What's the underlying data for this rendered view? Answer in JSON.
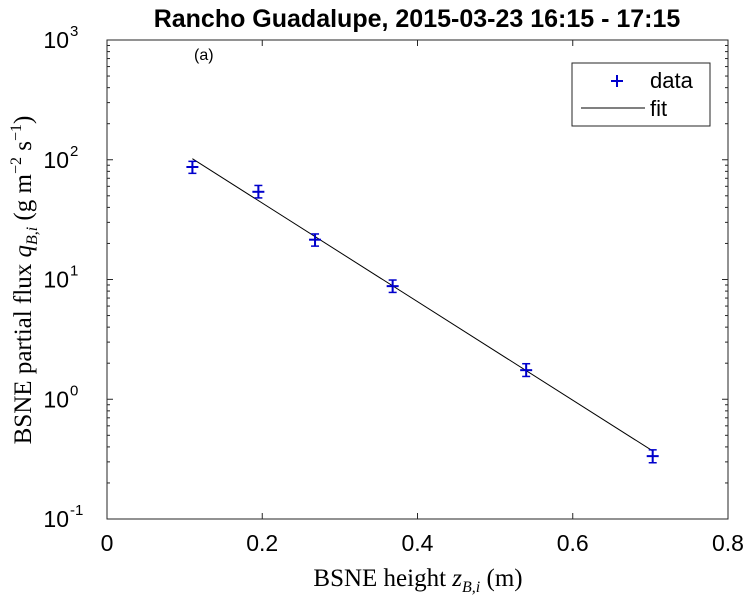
{
  "chart_data": {
    "type": "scatter",
    "title": "Rancho Guadalupe, 2015-03-23 16:15 - 17:15",
    "panel_label": "(a)",
    "xlabel": "BSNE height z_{B,i} (m)",
    "ylabel": "BSNE partial flux q_{B,i} (g m^{-2} s^{-1})",
    "xlim": [
      0,
      0.8
    ],
    "ylim": [
      0.1,
      1000
    ],
    "yscale": "log",
    "grid": false,
    "x_ticks": [
      {
        "value": 0,
        "label": "0"
      },
      {
        "value": 0.2,
        "label": "0.2"
      },
      {
        "value": 0.4,
        "label": "0.4"
      },
      {
        "value": 0.6,
        "label": "0.6"
      },
      {
        "value": 0.8,
        "label": "0.8"
      }
    ],
    "y_ticks": [
      {
        "value": 0.1,
        "base": "10",
        "exp": "-1"
      },
      {
        "value": 1,
        "base": "10",
        "exp": "0"
      },
      {
        "value": 10,
        "base": "10",
        "exp": "1"
      },
      {
        "value": 100,
        "base": "10",
        "exp": "2"
      },
      {
        "value": 1000,
        "base": "10",
        "exp": "3"
      }
    ],
    "legend": {
      "placement": "top-right",
      "entries": [
        {
          "label": "data",
          "marker": "plus",
          "color": "#0000cc"
        },
        {
          "label": "fit",
          "marker": "line",
          "color": "#000000"
        }
      ]
    },
    "series": [
      {
        "name": "data",
        "color": "#0000cc",
        "points": [
          {
            "x": 0.11,
            "y": 87,
            "y_low": 77,
            "y_high": 97
          },
          {
            "x": 0.195,
            "y": 54,
            "y_low": 48,
            "y_high": 61
          },
          {
            "x": 0.268,
            "y": 21.5,
            "y_low": 19,
            "y_high": 24
          },
          {
            "x": 0.368,
            "y": 8.8,
            "y_low": 7.8,
            "y_high": 9.9
          },
          {
            "x": 0.54,
            "y": 1.75,
            "y_low": 1.55,
            "y_high": 1.98
          },
          {
            "x": 0.703,
            "y": 0.335,
            "y_low": 0.295,
            "y_high": 0.378
          }
        ]
      },
      {
        "name": "fit",
        "color": "#000000",
        "points": [
          {
            "x": 0.11,
            "y": 102
          },
          {
            "x": 0.703,
            "y": 0.37
          }
        ]
      }
    ]
  }
}
